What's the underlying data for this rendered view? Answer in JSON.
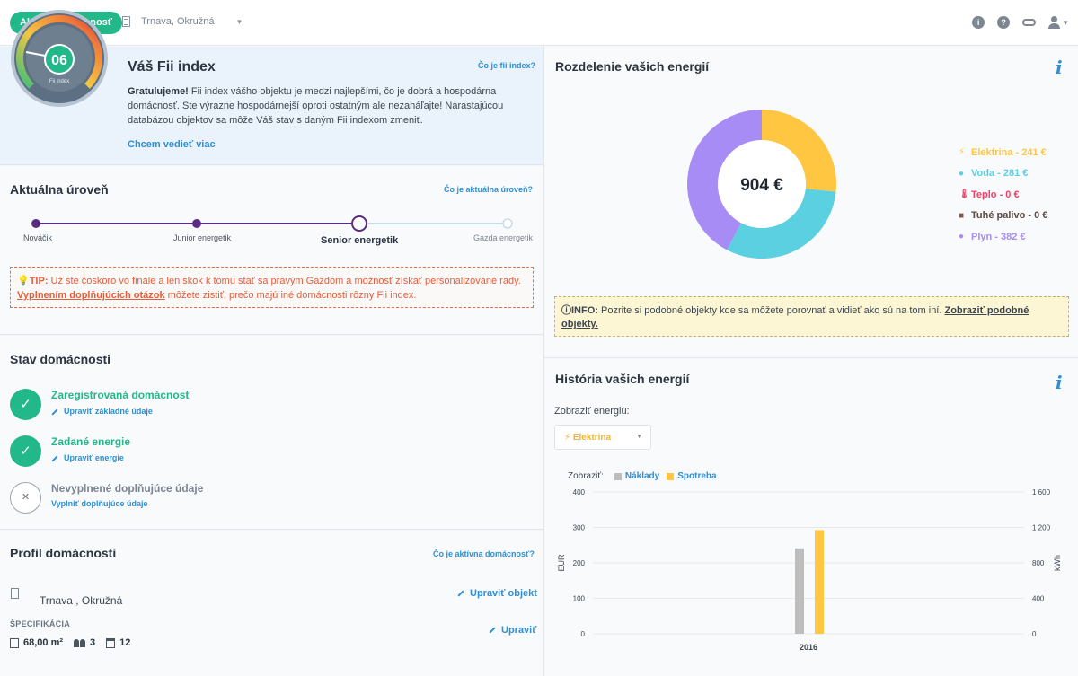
{
  "topbar": {
    "active_label": "Aktívna domácnosť",
    "location": "Trnava, Okružná",
    "icons": [
      "info-icon",
      "help-icon",
      "link-icon",
      "user-icon"
    ]
  },
  "fii": {
    "title": "Váš Fii index",
    "help_link": "Čo je fii index?",
    "score": "06",
    "score_caption": "Fii index",
    "congrats": "Gratulujeme!",
    "text": " Fii index vášho objektu je medzi najlepšími, čo je dobrá a hospodárna domácnosť. Ste výrazne hospodárnejší oproti ostatným ale nezaháľajte! Narastajúcou databázou objektov sa môže Váš stav s daným Fii indexom zmeniť.",
    "more_link": "Chcem vedieť viac"
  },
  "level": {
    "title": "Aktuálna úroveň",
    "help_link": "Čo je aktuálna úroveň?",
    "steps": [
      {
        "label": "Nováčik",
        "state": "done"
      },
      {
        "label": "Junior energetik",
        "state": "done"
      },
      {
        "label": "Senior energetik",
        "state": "current"
      },
      {
        "label": "Gazda energetik",
        "state": "todo"
      }
    ],
    "tip_prefix": "TIP:",
    "tip_text1": " Už ste čoskoro vo finále a len skok k tomu stať sa pravým Gazdom a možnosť získať personalizované rady. ",
    "tip_link": "Vyplnením doplňujúcich otázok",
    "tip_text2": " môžete zistiť, prečo majú iné domácnosti rôzny Fii index."
  },
  "status": {
    "title": "Stav domácnosti",
    "items": [
      {
        "title": "Zaregistrovaná domácnosť",
        "link": "Upraviť základné údaje",
        "done": true
      },
      {
        "title": "Zadané energie",
        "link": "Upraviť energie",
        "done": true
      },
      {
        "title": "Nevyplnené doplňujúce údaje",
        "link": "Vyplniť doplňujúce údaje",
        "done": false
      }
    ]
  },
  "profile": {
    "title": "Profil domácnosti",
    "help_link": "Čo je aktívna domácnosť?",
    "address": "Trnava , Okružná",
    "edit_object": "Upraviť objekt",
    "spec_label": "ŠPECIFIKÁCIA",
    "edit": "Upraviť",
    "area": "68,00 m²",
    "persons": "3",
    "months": "12"
  },
  "energies": {
    "title": "Rozdelenie vašich energií",
    "total": "904 €",
    "legend": [
      {
        "label": "Elektrina - 241 €",
        "color": "#ffc642",
        "icon": "bolt-icon",
        "sym": "⚡"
      },
      {
        "label": "Voda - 281 €",
        "color": "#5ad0e0",
        "icon": "drop-icon",
        "sym": "💧"
      },
      {
        "label": "Teplo - 0 €",
        "color": "#f0416b",
        "icon": "thermometer-icon",
        "sym": "🌡"
      },
      {
        "label": "Tuhé palivo - 0 €",
        "color": "#7d5a4a",
        "icon": "fuel-icon",
        "sym": "⛽"
      },
      {
        "label": "Plyn - 382 €",
        "color": "#a88cf5",
        "icon": "flame-icon",
        "sym": "🔥"
      }
    ],
    "info_prefix": "INFO:",
    "info_text": " Pozrite si podobné objekty kde sa môžete porovnať a vidieť ako sú na tom iní. ",
    "info_link": "Zobraziť podobné objekty."
  },
  "history": {
    "title": "História vašich energií",
    "show_label": "Zobraziť energiu:",
    "selected": "Elektrina",
    "display_label": "Zobraziť:",
    "toggle1": "Náklady",
    "toggle2": "Spotreba"
  },
  "chart_data": {
    "type": "bar",
    "categories": [
      "2016"
    ],
    "series": [
      {
        "name": "Náklady",
        "values": [
          241
        ],
        "color": "#bdbdbd",
        "axis": "left"
      },
      {
        "name": "Spotreba",
        "values": [
          1170
        ],
        "color": "#ffc642",
        "axis": "right"
      }
    ],
    "ylabel": "EUR",
    "ylabel_right": "kWh",
    "ylim": [
      0,
      400
    ],
    "ylim_right": [
      0,
      1600
    ],
    "yticks": [
      "0",
      "100",
      "200",
      "300",
      "400"
    ],
    "yticks_right": [
      "0",
      "400",
      "800",
      "1 200",
      "1 600"
    ]
  }
}
